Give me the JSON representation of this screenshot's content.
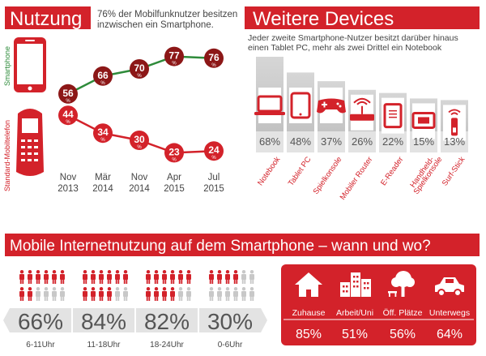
{
  "colors": {
    "red": "#d3222a",
    "dark_red": "#8c1717",
    "green": "#2e8b3a",
    "gray": "#c8c8c8",
    "dark_gray": "#555555",
    "light_gray": "#e3e3e3"
  },
  "nutzung": {
    "title": "Nutzung",
    "subtitle_line1": "76% der Mobilfunknutzer besitzen",
    "subtitle_line2": "inzwischen ein Smartphone.",
    "label_smartphone": "Smartphone",
    "label_standard": "Standard-Mobiltelefon",
    "percent_sign": "%"
  },
  "weitere": {
    "title": "Weitere Devices",
    "subtitle_line1": "Jeder zweite Smartphone-Nutzer besitzt darüber hinaus",
    "subtitle_line2": "einen Tablet PC, mehr als zwei Drittel ein Notebook"
  },
  "mobile": {
    "title": "Mobile Internetnutzung auf dem Smartphone – wann und wo?"
  },
  "chart_data": [
    {
      "type": "line",
      "x": [
        "Nov 2013",
        "Mär 2014",
        "Nov 2014",
        "Apr 2015",
        "Jul 2015"
      ],
      "x_labels": [
        [
          "Nov",
          "2013"
        ],
        [
          "Mär",
          "2014"
        ],
        [
          "Nov",
          "2014"
        ],
        [
          "Apr",
          "2015"
        ],
        [
          "Jul",
          "2015"
        ]
      ],
      "series": [
        {
          "name": "Smartphone",
          "values": [
            56,
            66,
            70,
            77,
            76
          ]
        },
        {
          "name": "Standard-Mobiltelefon",
          "values": [
            44,
            34,
            30,
            23,
            24
          ]
        }
      ],
      "ylim": [
        15,
        85
      ]
    },
    {
      "type": "bar",
      "categories": [
        "Notebook",
        "Tablet PC",
        "Spielkonsole",
        "Mobiler Router",
        "E-Reader",
        "Handheld-Spielkonsole",
        "Surf-Stick"
      ],
      "category_lines": [
        [
          "Notebook"
        ],
        [
          "Tablet PC"
        ],
        [
          "Spielkonsole"
        ],
        [
          "Mobiler Router"
        ],
        [
          "E-Reader"
        ],
        [
          "Handheld-",
          "Spielkonsole"
        ],
        [
          "Surf-Stick"
        ]
      ],
      "values": [
        68,
        48,
        37,
        26,
        22,
        15,
        13
      ],
      "labels": [
        "68%",
        "48%",
        "37%",
        "26%",
        "22%",
        "15%",
        "13%"
      ],
      "icons": [
        "notebook-icon",
        "tablet-icon",
        "gamepad-icon",
        "router-icon",
        "ereader-icon",
        "handheld-icon",
        "surfstick-icon"
      ]
    },
    {
      "type": "bar",
      "categories": [
        "6-11Uhr",
        "11-18Uhr",
        "18-24Uhr",
        "0-6Uhr"
      ],
      "values": [
        66,
        84,
        82,
        30
      ],
      "labels": [
        "66%",
        "84%",
        "82%",
        "30%"
      ],
      "icon": "person-icon"
    },
    {
      "type": "bar",
      "categories": [
        "Zuhause",
        "Arbeit/Uni",
        "Öff. Plätze",
        "Unterwegs"
      ],
      "values": [
        85,
        51,
        56,
        64
      ],
      "labels": [
        "85%",
        "51%",
        "56%",
        "64%"
      ],
      "icons": [
        "house-icon",
        "office-building-icon",
        "park-tree-icon",
        "car-icon"
      ]
    }
  ]
}
